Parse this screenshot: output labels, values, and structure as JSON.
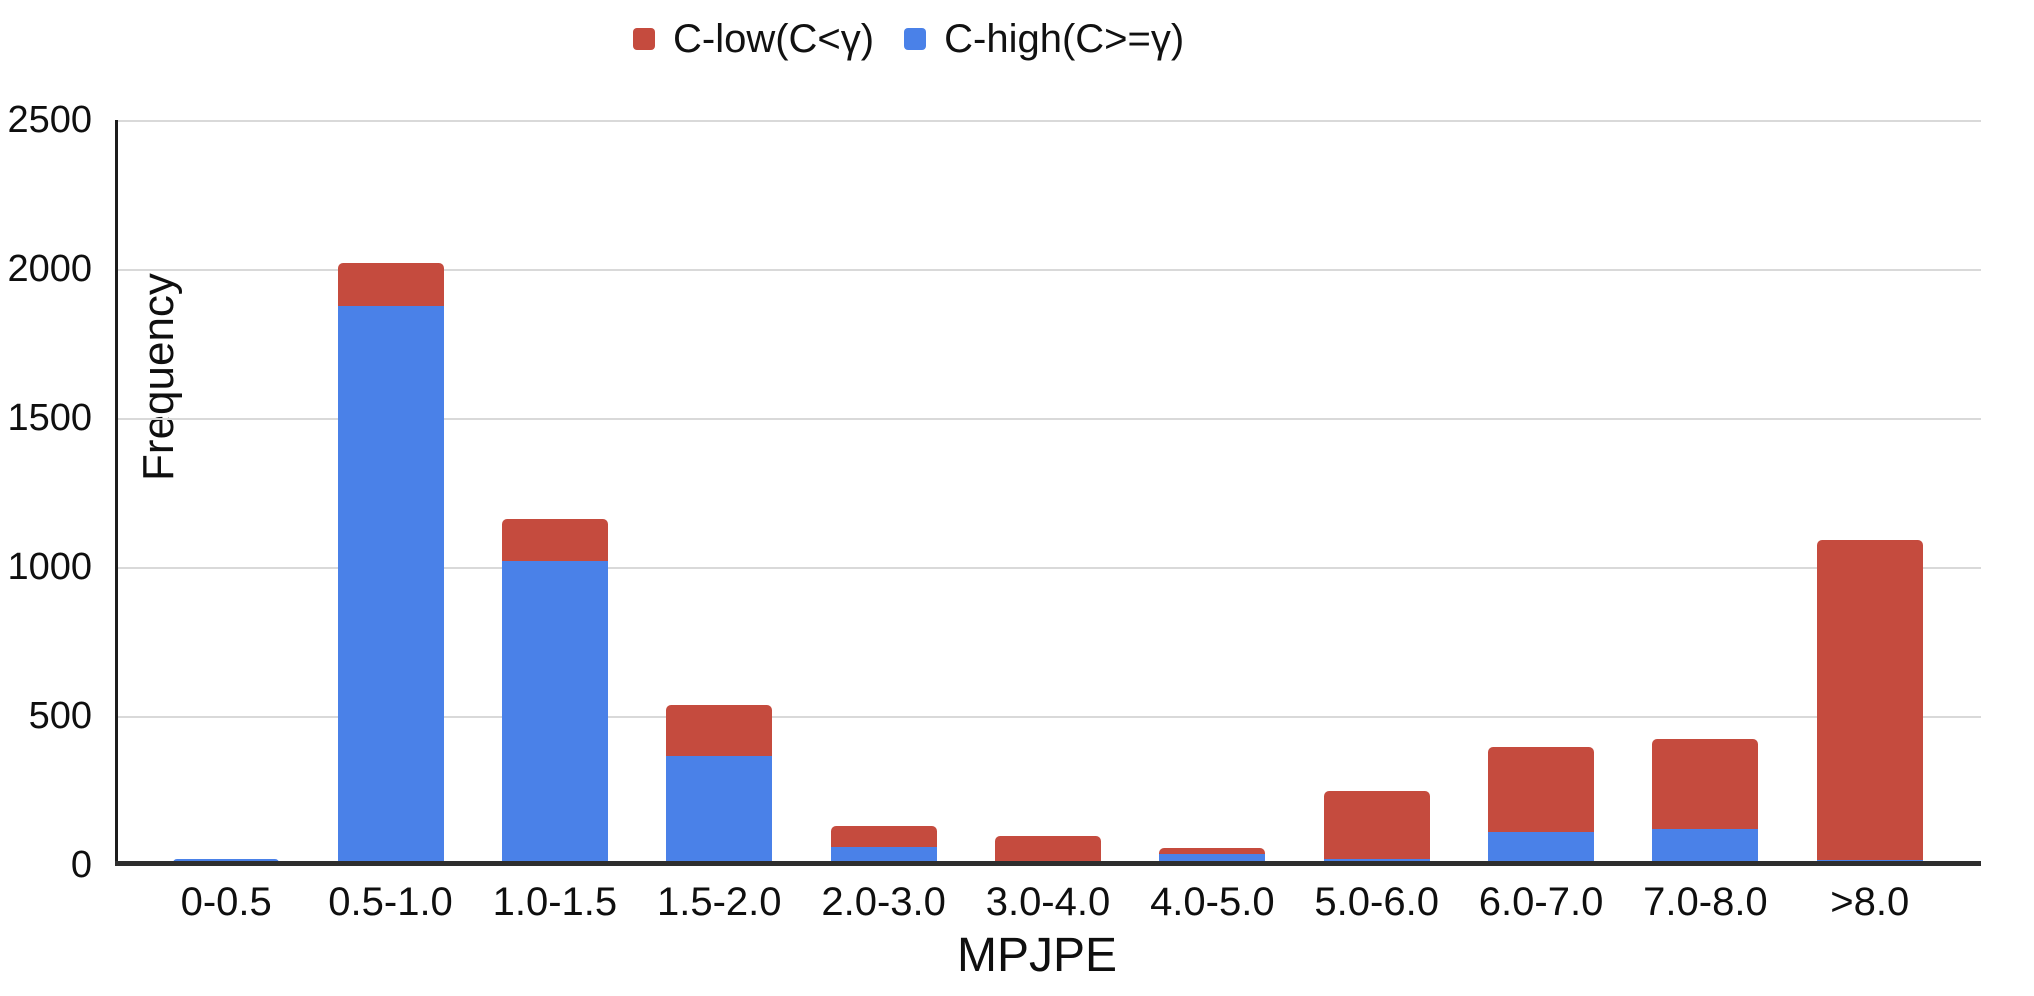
{
  "figure": {
    "xlabel": "MPJPE",
    "ylabel": "Frequency",
    "background": "#ffffff",
    "gridline_color": "#d9d9d9",
    "axis_color": "#2e2e2e",
    "legend": [
      {
        "label": "C-low(C<γ)",
        "color": "#c54b3e"
      },
      {
        "label": "C-high(C>=γ)",
        "color": "#4a81e8"
      }
    ]
  },
  "chart_data": {
    "type": "bar",
    "stacked": true,
    "title": "",
    "xlabel": "MPJPE",
    "ylabel": "Frequency",
    "ylim": [
      0,
      2500
    ],
    "yticks": [
      0,
      500,
      1000,
      1500,
      2000,
      2500
    ],
    "grid": true,
    "legend_position": "top-center",
    "categories": [
      "0-0.5",
      "0.5-1.0",
      "1.0-1.5",
      "1.5-2.0",
      "2.0-3.0",
      "3.0-4.0",
      "4.0-5.0",
      "5.0-6.0",
      "6.0-7.0",
      "7.0-8.0",
      ">8.0"
    ],
    "series": [
      {
        "name": "C-high(C>=γ)",
        "color": "#4a81e8",
        "stack_position": "bottom",
        "values": [
          15,
          1870,
          1015,
          360,
          55,
          0,
          30,
          12,
          105,
          115,
          10
        ]
      },
      {
        "name": "C-low(C<γ)",
        "color": "#c54b3e",
        "stack_position": "top",
        "values": [
          0,
          145,
          140,
          170,
          70,
          90,
          20,
          230,
          285,
          300,
          1075
        ]
      }
    ],
    "totals": [
      15,
      2015,
      1155,
      530,
      125,
      90,
      50,
      242,
      390,
      415,
      1085
    ]
  }
}
